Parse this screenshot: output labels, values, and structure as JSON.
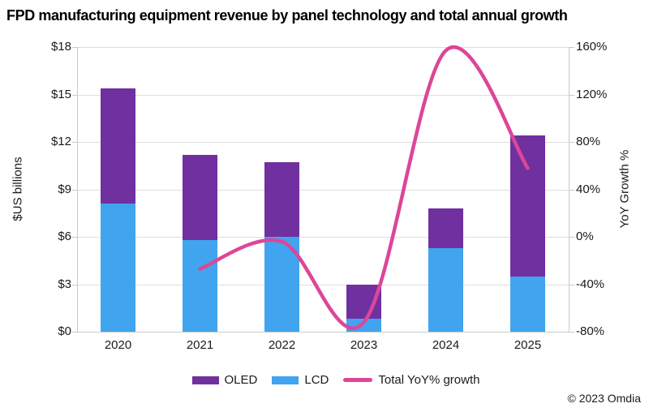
{
  "footer": {
    "copyright": "© 2023 Omdia"
  },
  "chart_data": {
    "type": "bar",
    "subtype": "stacked-bars-with-smoothed-line-overlay",
    "title": "FPD manufacturing equipment revenue by panel technology and total annual growth",
    "categories": [
      "2020",
      "2021",
      "2022",
      "2023",
      "2024",
      "2025"
    ],
    "bar_series": [
      {
        "name": "LCD",
        "color": "#41A4EE",
        "stack_position": "bottom",
        "values": [
          8.1,
          5.8,
          6.0,
          0.8,
          5.3,
          3.5
        ]
      },
      {
        "name": "OLED",
        "color": "#7030A0",
        "stack_position": "top",
        "values": [
          7.3,
          5.4,
          4.7,
          2.2,
          2.5,
          8.9
        ]
      }
    ],
    "bar_totals": [
      15.4,
      11.2,
      10.7,
      3.0,
      7.8,
      12.4
    ],
    "line_series": {
      "name": "Total YoY% growth",
      "color": "#DC4699",
      "axis": "right",
      "smoothed": true,
      "values": [
        null,
        -27,
        -4,
        -72,
        157,
        58
      ]
    },
    "ylabel_left": "$US billions",
    "ylabel_right": "YoY Growth %",
    "yaxis_left": {
      "min": 0,
      "max": 18,
      "step": 3,
      "ticks": [
        "$18",
        "$15",
        "$12",
        "$9",
        "$6",
        "$3",
        "$0"
      ]
    },
    "yaxis_right": {
      "min": -80,
      "max": 160,
      "step": 40,
      "ticks": [
        "160%",
        "120%",
        "80%",
        "40%",
        "0%",
        "-40%",
        "-80%"
      ]
    },
    "grid": "horizontal, light gray, on",
    "legend": {
      "position": "bottom-center",
      "items": [
        {
          "label": "OLED",
          "swatch": "rect",
          "color": "#7030A0"
        },
        {
          "label": "LCD",
          "swatch": "rect",
          "color": "#41A4EE"
        },
        {
          "label": "Total YoY% growth",
          "swatch": "line",
          "color": "#DC4699"
        }
      ]
    }
  }
}
